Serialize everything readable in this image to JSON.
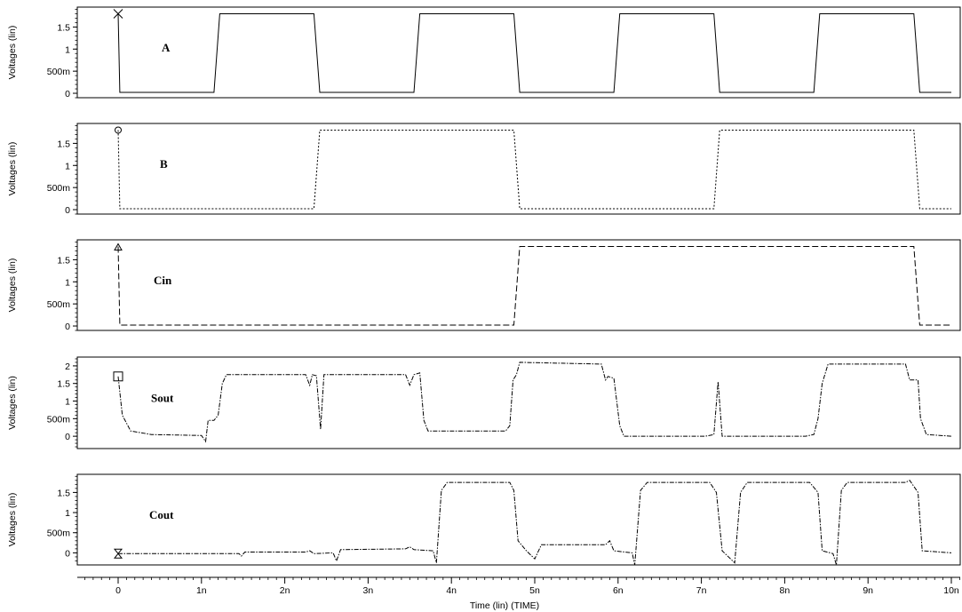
{
  "chart_data": {
    "type": "line",
    "xlabel": "Time (lin) (TIME)",
    "xlim": [
      0,
      10
    ],
    "x_ticks": [
      0,
      1,
      2,
      3,
      4,
      5,
      6,
      7,
      8,
      9,
      10
    ],
    "x_tick_labels": [
      "0",
      "1n",
      "2n",
      "3n",
      "4n",
      "5n",
      "6n",
      "7n",
      "8n",
      "9n",
      "10n"
    ],
    "panels": [
      {
        "signal": "A",
        "ylabel": "Voltages (lin)",
        "ylim": [
          -0.1,
          1.95
        ],
        "y_ticks": [
          0,
          0.5,
          1,
          1.5
        ],
        "y_tick_labels": [
          "0",
          "500m",
          "1",
          "1.5"
        ],
        "marker": "x",
        "dash": "",
        "points": [
          [
            0,
            1.8
          ],
          [
            0.02,
            0.02
          ],
          [
            1.15,
            0.02
          ],
          [
            1.22,
            1.8
          ],
          [
            2.35,
            1.8
          ],
          [
            2.42,
            0.02
          ],
          [
            3.55,
            0.02
          ],
          [
            3.62,
            1.8
          ],
          [
            4.75,
            1.8
          ],
          [
            4.82,
            0.02
          ],
          [
            5.95,
            0.02
          ],
          [
            6.02,
            1.8
          ],
          [
            7.15,
            1.8
          ],
          [
            7.22,
            0.02
          ],
          [
            8.35,
            0.02
          ],
          [
            8.42,
            1.8
          ],
          [
            9.55,
            1.8
          ],
          [
            9.62,
            0.02
          ],
          [
            10,
            0.02
          ]
        ]
      },
      {
        "signal": "B",
        "ylabel": "Voltages (lin)",
        "ylim": [
          -0.1,
          1.95
        ],
        "y_ticks": [
          0,
          0.5,
          1,
          1.5
        ],
        "y_tick_labels": [
          "0",
          "500m",
          "1",
          "1.5"
        ],
        "marker": "circle",
        "dash": "2,2",
        "points": [
          [
            0,
            1.8
          ],
          [
            0.02,
            0.02
          ],
          [
            2.35,
            0.02
          ],
          [
            2.42,
            1.8
          ],
          [
            4.75,
            1.8
          ],
          [
            4.82,
            0.02
          ],
          [
            7.15,
            0.02
          ],
          [
            7.22,
            1.8
          ],
          [
            9.55,
            1.8
          ],
          [
            9.62,
            0.02
          ],
          [
            10,
            0.02
          ]
        ]
      },
      {
        "signal": "Cin",
        "ylabel": "Voltages (lin)",
        "ylim": [
          -0.1,
          1.95
        ],
        "y_ticks": [
          0,
          0.5,
          1,
          1.5
        ],
        "y_tick_labels": [
          "0",
          "500m",
          "1",
          "1.5"
        ],
        "marker": "triangle",
        "dash": "7,3",
        "points": [
          [
            0,
            1.8
          ],
          [
            0.02,
            0.02
          ],
          [
            4.75,
            0.02
          ],
          [
            4.82,
            1.8
          ],
          [
            9.55,
            1.8
          ],
          [
            9.62,
            0.02
          ],
          [
            10,
            0.02
          ]
        ]
      },
      {
        "signal": "Sout",
        "ylabel": "Voltages (lin)",
        "ylim": [
          -0.35,
          2.25
        ],
        "y_ticks": [
          0,
          0.5,
          1,
          1.5,
          2
        ],
        "y_tick_labels": [
          "0",
          "500m",
          "1",
          "1.5",
          "2"
        ],
        "marker": "square",
        "dash": "5,1.5,1.5,1.5",
        "points": [
          [
            0,
            1.7
          ],
          [
            0.05,
            0.6
          ],
          [
            0.15,
            0.15
          ],
          [
            0.4,
            0.05
          ],
          [
            1.0,
            0.02
          ],
          [
            1.05,
            -0.15
          ],
          [
            1.08,
            0.45
          ],
          [
            1.15,
            0.45
          ],
          [
            1.2,
            0.6
          ],
          [
            1.25,
            1.5
          ],
          [
            1.3,
            1.75
          ],
          [
            2.25,
            1.75
          ],
          [
            2.3,
            1.45
          ],
          [
            2.33,
            1.75
          ],
          [
            2.38,
            1.72
          ],
          [
            2.43,
            0.2
          ],
          [
            2.47,
            1.75
          ],
          [
            3.45,
            1.75
          ],
          [
            3.5,
            1.45
          ],
          [
            3.55,
            1.75
          ],
          [
            3.62,
            1.8
          ],
          [
            3.67,
            0.45
          ],
          [
            3.72,
            0.15
          ],
          [
            4.65,
            0.15
          ],
          [
            4.7,
            0.3
          ],
          [
            4.74,
            1.6
          ],
          [
            4.78,
            1.75
          ],
          [
            4.82,
            2.1
          ],
          [
            5.8,
            2.05
          ],
          [
            5.85,
            1.6
          ],
          [
            5.88,
            1.7
          ],
          [
            5.95,
            1.65
          ],
          [
            6.02,
            0.3
          ],
          [
            6.07,
            0.0
          ],
          [
            7.05,
            0.0
          ],
          [
            7.15,
            0.05
          ],
          [
            7.2,
            1.55
          ],
          [
            7.25,
            0.0
          ],
          [
            8.25,
            0.0
          ],
          [
            8.35,
            0.05
          ],
          [
            8.4,
            0.5
          ],
          [
            8.45,
            1.5
          ],
          [
            8.52,
            2.05
          ],
          [
            9.45,
            2.05
          ],
          [
            9.5,
            1.6
          ],
          [
            9.6,
            1.6
          ],
          [
            9.63,
            0.5
          ],
          [
            9.7,
            0.05
          ],
          [
            10,
            0.0
          ]
        ]
      },
      {
        "signal": "Cout",
        "ylabel": "Voltages (lin)",
        "ylim": [
          -0.3,
          1.95
        ],
        "y_ticks": [
          0,
          0.5,
          1,
          1.5
        ],
        "y_tick_labels": [
          "0",
          "500m",
          "1",
          "1.5"
        ],
        "marker": "hourglass",
        "dash": "5,1.5,1.5,1.5",
        "points": [
          [
            0,
            -0.02
          ],
          [
            1.45,
            -0.02
          ],
          [
            1.48,
            -0.08
          ],
          [
            1.52,
            0.02
          ],
          [
            2.25,
            0.02
          ],
          [
            2.3,
            0.05
          ],
          [
            2.35,
            -0.02
          ],
          [
            2.58,
            0.0
          ],
          [
            2.62,
            -0.2
          ],
          [
            2.67,
            0.08
          ],
          [
            3.45,
            0.1
          ],
          [
            3.5,
            0.15
          ],
          [
            3.55,
            0.08
          ],
          [
            3.78,
            0.05
          ],
          [
            3.82,
            -0.25
          ],
          [
            3.88,
            1.55
          ],
          [
            3.95,
            1.75
          ],
          [
            4.7,
            1.75
          ],
          [
            4.75,
            1.55
          ],
          [
            4.8,
            0.3
          ],
          [
            4.9,
            0.05
          ],
          [
            5.0,
            -0.15
          ],
          [
            5.08,
            0.2
          ],
          [
            5.85,
            0.2
          ],
          [
            5.9,
            0.3
          ],
          [
            5.95,
            0.05
          ],
          [
            6.17,
            0.0
          ],
          [
            6.2,
            -0.3
          ],
          [
            6.27,
            1.55
          ],
          [
            6.35,
            1.75
          ],
          [
            7.1,
            1.75
          ],
          [
            7.18,
            1.5
          ],
          [
            7.25,
            0.05
          ],
          [
            7.4,
            -0.25
          ],
          [
            7.47,
            1.5
          ],
          [
            7.55,
            1.75
          ],
          [
            8.3,
            1.75
          ],
          [
            8.4,
            1.5
          ],
          [
            8.45,
            0.05
          ],
          [
            8.58,
            -0.02
          ],
          [
            8.62,
            -0.3
          ],
          [
            8.68,
            1.55
          ],
          [
            8.75,
            1.75
          ],
          [
            9.45,
            1.75
          ],
          [
            9.5,
            1.8
          ],
          [
            9.6,
            1.5
          ],
          [
            9.65,
            0.05
          ],
          [
            10,
            0.0
          ]
        ]
      }
    ]
  }
}
